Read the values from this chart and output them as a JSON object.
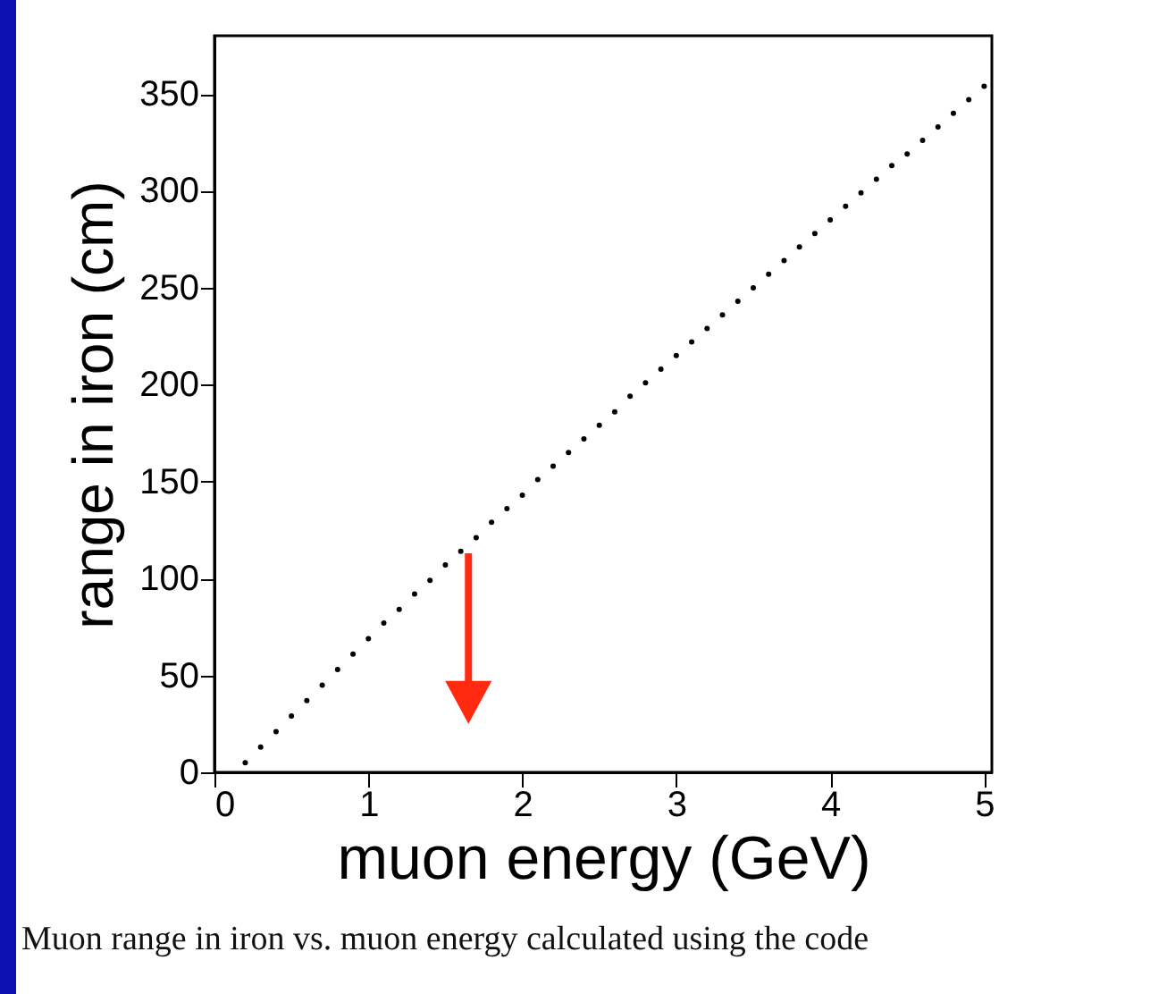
{
  "chart_data": {
    "type": "scatter",
    "xlabel": "muon energy  (GeV)",
    "ylabel": "range in iron (cm)",
    "x": [
      0.2,
      0.3,
      0.4,
      0.5,
      0.6,
      0.7,
      0.8,
      0.9,
      1.0,
      1.1,
      1.2,
      1.3,
      1.4,
      1.5,
      1.6,
      1.7,
      1.8,
      1.9,
      2.0,
      2.1,
      2.2,
      2.3,
      2.4,
      2.5,
      2.6,
      2.7,
      2.8,
      2.9,
      3.0,
      3.1,
      3.2,
      3.3,
      3.4,
      3.5,
      3.6,
      3.7,
      3.8,
      3.9,
      4.0,
      4.1,
      4.2,
      4.3,
      4.4,
      4.5,
      4.6,
      4.7,
      4.8,
      4.9,
      5.0
    ],
    "series": [
      {
        "color": "#000000",
        "values": [
          5,
          13,
          21,
          29,
          37,
          45,
          53,
          61,
          69,
          77,
          84,
          92,
          99,
          107,
          114,
          121,
          129,
          136,
          143,
          151,
          158,
          165,
          172,
          179,
          186,
          194,
          201,
          208,
          215,
          222,
          229,
          236,
          243,
          250,
          257,
          264,
          271,
          278,
          285,
          292,
          299,
          306,
          313,
          319,
          326,
          333,
          340,
          347,
          354
        ]
      }
    ],
    "xlim": [
      0,
      5.05
    ],
    "ylim": [
      0,
      380
    ],
    "xticks": [
      0,
      1,
      2,
      3,
      4,
      5
    ],
    "yticks": [
      0,
      50,
      100,
      150,
      200,
      250,
      300,
      350
    ],
    "marker": "circle",
    "annotations": [
      "Muon range in iron vs. muon energy calculated using the code"
    ]
  }
}
